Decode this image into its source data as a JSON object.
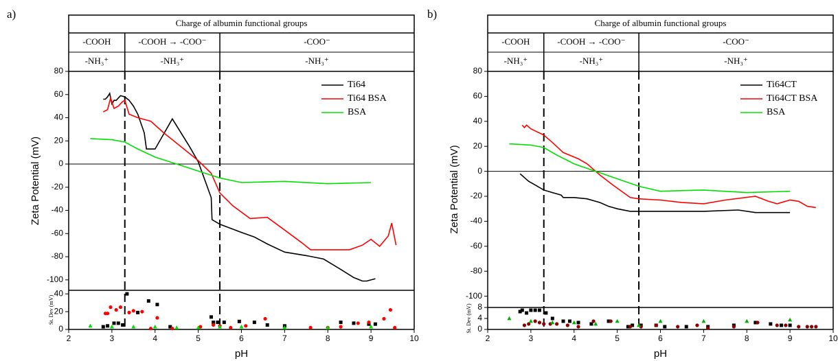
{
  "chart_data": [
    {
      "type": "line",
      "panel_label": "a)",
      "header": {
        "title": "Charge of albumin functional groups",
        "rows": [
          [
            "-COOH",
            "-COOH → -COO⁻",
            "-COO⁻"
          ],
          [
            "-NH₃⁺",
            "-NH₃⁺",
            "-NH₃⁺"
          ]
        ]
      },
      "boundaries": [
        3.3,
        5.5
      ],
      "xlabel": "pH",
      "ylabel": "Zeta Potential (mV)",
      "xlim": [
        2,
        10
      ],
      "xticks": [
        2,
        3,
        4,
        5,
        6,
        7,
        8,
        9,
        10
      ],
      "ylim": [
        -109,
        80
      ],
      "yticks": [
        80,
        60,
        40,
        20,
        0,
        -20,
        -40,
        -60,
        -80,
        -100
      ],
      "legend": "upper right",
      "series": [
        {
          "name": "Ti64",
          "color": "#000000",
          "x": [
            2.8,
            2.85,
            2.9,
            2.95,
            3.0,
            3.05,
            3.1,
            3.2,
            3.3,
            3.4,
            3.5,
            3.6,
            3.75,
            3.8,
            4.0,
            4.4,
            4.8,
            5.0,
            5.3,
            5.32,
            5.5,
            6.0,
            6.3,
            6.6,
            7.0,
            7.5,
            7.9,
            8.3,
            8.6,
            8.8,
            8.9,
            9.1
          ],
          "values": [
            56,
            56,
            58,
            61,
            52,
            55,
            55,
            59,
            58,
            55,
            50,
            43,
            27,
            13,
            13,
            39,
            15,
            2,
            -29,
            -48,
            -52,
            -59,
            -63,
            -69,
            -76,
            -79,
            -82,
            -91,
            -98,
            -101,
            -101,
            -99
          ]
        },
        {
          "name": "Ti64 BSA",
          "color": "#ff0000",
          "x": [
            2.8,
            2.9,
            2.97,
            3.05,
            3.15,
            3.25,
            3.3,
            3.4,
            3.6,
            3.9,
            4.2,
            4.6,
            5.0,
            5.3,
            5.5,
            5.8,
            6.2,
            6.6,
            7.0,
            7.4,
            7.6,
            8.0,
            8.5,
            8.8,
            9.0,
            9.2,
            9.4,
            9.48,
            9.58
          ],
          "values": [
            45,
            47,
            57,
            48,
            50,
            54,
            55,
            43,
            40,
            37,
            27,
            15,
            3,
            -8,
            -25,
            -36,
            -47,
            -46,
            -57,
            -68,
            -74,
            -74,
            -74,
            -70,
            -65,
            -71,
            -62,
            -51,
            -70
          ]
        },
        {
          "name": "BSA",
          "color": "#00e000",
          "x": [
            2.5,
            3.0,
            3.3,
            3.6,
            4.0,
            4.5,
            5.0,
            5.5,
            6.0,
            7.0,
            8.0,
            9.0
          ],
          "values": [
            22,
            21,
            19,
            13,
            6,
            0,
            -6,
            -12,
            -16,
            -15,
            -17,
            -16
          ]
        }
      ],
      "stdev": {
        "ylabel": "St. Dev (mV)",
        "ylim": [
          0,
          44
        ],
        "yticks": [
          0,
          20,
          40
        ],
        "series": [
          {
            "color": "#000000",
            "marker": "square",
            "x": [
              2.8,
              2.9,
              3.05,
              3.15,
              3.25,
              3.35,
              3.6,
              3.85,
              4.05,
              4.35,
              5.3,
              5.35,
              5.45,
              5.6,
              5.95,
              6.3,
              6.6,
              7.0,
              8.3,
              8.6,
              8.95,
              9.1
            ],
            "values": [
              3,
              4,
              7,
              7,
              5,
              40,
              19,
              32,
              28,
              3,
              14,
              8,
              8,
              8,
              9,
              8,
              5,
              4,
              8,
              7,
              6,
              6
            ]
          },
          {
            "color": "#ff0000",
            "marker": "circle",
            "x": [
              2.85,
              2.9,
              2.97,
              3.1,
              3.2,
              3.4,
              3.5,
              3.7,
              3.9,
              4.05,
              4.4,
              5.05,
              5.35,
              5.5,
              5.75,
              6.1,
              6.55,
              7.6,
              8.0,
              8.3,
              8.7,
              8.95,
              9.3,
              9.45,
              9.55
            ],
            "values": [
              18,
              18,
              25,
              22,
              25,
              19,
              21,
              20,
              1,
              13,
              1,
              3,
              5,
              4,
              2,
              4,
              12,
              2,
              2,
              3,
              7,
              8,
              12,
              22,
              2
            ]
          },
          {
            "color": "#00e000",
            "marker": "triangle",
            "x": [
              2.5,
              3.0,
              3.5,
              4.0,
              4.5,
              5.0,
              5.5,
              6.0,
              7.0,
              8.0,
              9.0
            ],
            "values": [
              4,
              3,
              3,
              3,
              2,
              2,
              3,
              3,
              2,
              2,
              3
            ]
          }
        ]
      }
    },
    {
      "type": "line",
      "panel_label": "b)",
      "header": {
        "title": "Charge of albumin functional groups",
        "rows": [
          [
            "-COOH",
            "-COOH → -COO⁻",
            "-COO⁻"
          ],
          [
            "-NH₃⁺",
            "-NH₃⁺",
            "-NH₃⁺"
          ]
        ]
      },
      "boundaries": [
        3.3,
        5.5
      ],
      "xlabel": "pH",
      "ylabel": "Zeta Potential (mV)",
      "xlim": [
        2,
        10
      ],
      "xticks": [
        2,
        3,
        4,
        5,
        6,
        7,
        8,
        9,
        10
      ],
      "ylim": [
        -109,
        80
      ],
      "yticks": [
        80,
        60,
        40,
        20,
        0,
        -20,
        -40,
        -60,
        -80,
        -100
      ],
      "legend": "upper right",
      "series": [
        {
          "name": "Ti64CT",
          "color": "#000000",
          "x": [
            2.75,
            2.85,
            2.95,
            3.1,
            3.3,
            3.5,
            3.7,
            3.75,
            4.0,
            4.3,
            4.6,
            4.8,
            5.0,
            5.3,
            6.0,
            7.0,
            7.8,
            8.2,
            8.6,
            9.0
          ],
          "values": [
            -2,
            -5,
            -8,
            -11,
            -15,
            -17,
            -19,
            -21,
            -21,
            -22,
            -25,
            -28,
            -30,
            -32,
            -32,
            -32,
            -31,
            -33,
            -33,
            -33
          ]
        },
        {
          "name": "Ti64CT BSA",
          "color": "#ff0000",
          "x": [
            2.8,
            2.85,
            2.9,
            3.0,
            3.3,
            3.5,
            3.75,
            4.1,
            4.3,
            4.6,
            4.9,
            5.3,
            5.5,
            6.0,
            6.5,
            7.0,
            7.5,
            8.2,
            8.5,
            8.7,
            9.0,
            9.2,
            9.4,
            9.6
          ],
          "values": [
            37,
            35,
            37,
            34,
            29,
            23,
            15,
            10,
            6,
            -3,
            -11,
            -21,
            -22,
            -23,
            -25,
            -26,
            -23,
            -20,
            -24,
            -26,
            -23,
            -24,
            -28,
            -29
          ]
        },
        {
          "name": "BSA",
          "color": "#00e000",
          "x": [
            2.5,
            3.0,
            3.3,
            3.6,
            4.0,
            4.5,
            5.0,
            5.5,
            6.0,
            7.0,
            8.0,
            9.0
          ],
          "values": [
            22,
            21,
            19,
            13,
            6,
            0,
            -6,
            -12,
            -16,
            -15,
            -17,
            -16
          ]
        }
      ],
      "stdev": {
        "ylabel": "St. Dev (mV)",
        "ylim": [
          0,
          8
        ],
        "yticks": [
          0,
          4,
          8
        ],
        "series": [
          {
            "color": "#000000",
            "marker": "square",
            "x": [
              2.75,
              2.8,
              2.9,
              3.0,
              3.1,
              3.2,
              3.35,
              3.5,
              3.75,
              3.9,
              4.1,
              4.4,
              4.8,
              5.25,
              5.35,
              5.55,
              5.9,
              6.1,
              6.6,
              7.1,
              7.7,
              8.2,
              8.55,
              8.8,
              9.0
            ],
            "values": [
              6.5,
              7,
              6,
              7,
              7,
              7,
              6,
              4,
              3,
              3,
              2.5,
              2,
              3,
              1,
              1.5,
              1.5,
              1.5,
              1,
              1,
              1,
              1.5,
              2.5,
              2,
              1.5,
              1.5
            ]
          },
          {
            "color": "#8b0000",
            "marker": "circle",
            "x": [
              2.85,
              2.95,
              3.1,
              3.2,
              3.3,
              3.45,
              3.6,
              3.85,
              4.1,
              4.45,
              4.85,
              5.3,
              5.55,
              5.9,
              6.4,
              6.85,
              7.1,
              7.7,
              8.25,
              8.7,
              8.9,
              9.2,
              9.4,
              9.5,
              9.6
            ],
            "values": [
              1.5,
              2,
              3,
              2.5,
              2,
              2,
              2,
              1.5,
              1,
              3,
              3,
              1,
              1,
              1.5,
              1,
              1.5,
              0.5,
              1,
              2.5,
              1.5,
              1.5,
              1,
              1,
              1,
              1
            ]
          },
          {
            "color": "#00b000",
            "marker": "triangle",
            "x": [
              2.5,
              3.0,
              3.5,
              4.0,
              4.5,
              5.0,
              5.5,
              6.0,
              7.0,
              8.0,
              9.0
            ],
            "values": [
              4,
              3,
              2.5,
              2.5,
              2,
              3,
              1.5,
              3,
              3,
              3,
              3.5
            ]
          }
        ]
      }
    }
  ]
}
